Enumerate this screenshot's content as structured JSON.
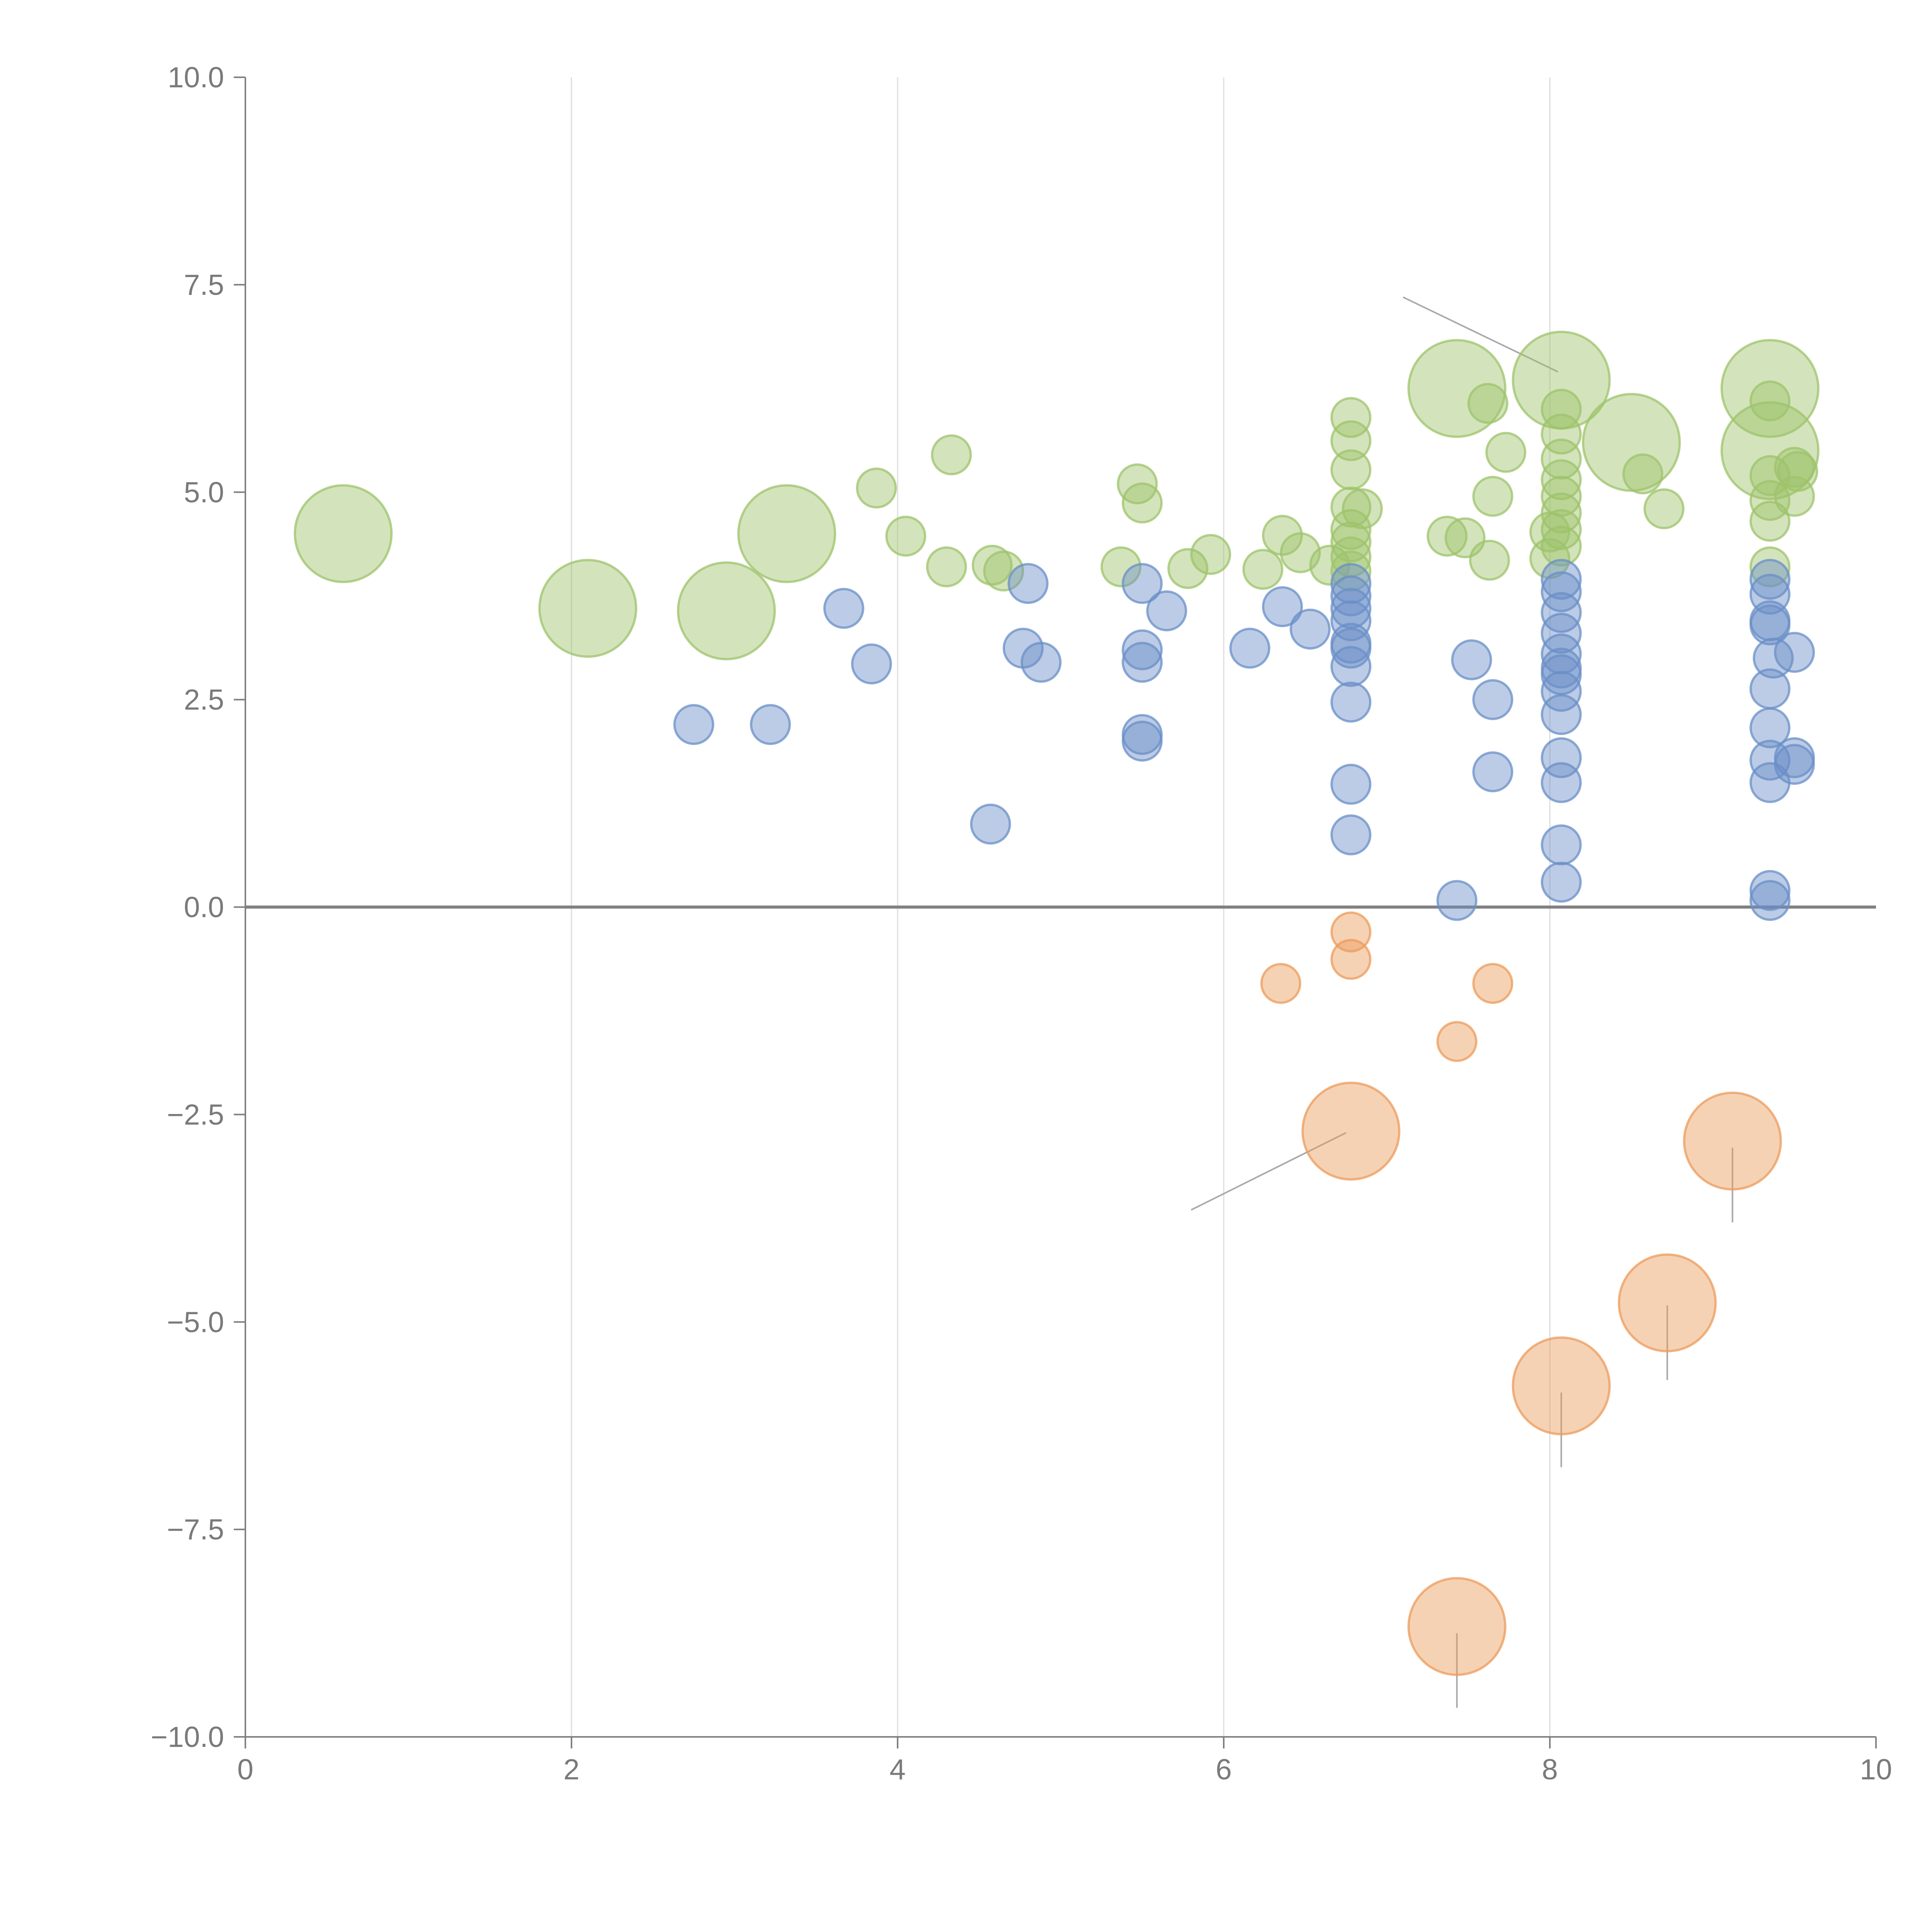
{
  "chart_data": {
    "type": "scatter",
    "title": "",
    "xlabel": "",
    "ylabel": "",
    "xlim": [
      0,
      10
    ],
    "ylim": [
      -10,
      10
    ],
    "x_ticks": [
      0,
      2,
      4,
      6,
      8,
      10
    ],
    "x_tick_labels": [
      "0",
      "2",
      "4",
      "6",
      "8",
      "10"
    ],
    "y_ticks": [
      -10,
      -7.5,
      -5,
      -2.5,
      0,
      2.5,
      5,
      7.5,
      10
    ],
    "y_tick_labels": [
      "−10.0",
      "−7.5",
      "−5.0",
      "−2.5",
      "0.0",
      "2.5",
      "5.0",
      "7.5",
      "10.0"
    ],
    "vertical_grid_at": [
      2,
      4,
      6,
      8
    ],
    "reference_line_y": 0,
    "colors": {
      "green": "#9dc36b",
      "blue": "#6a8fc7",
      "orange": "#ec9b5b",
      "axis": "#808080",
      "grid": "#dcdcdc",
      "leader": "#a8a8a8"
    },
    "size_note": "r = relative bubble size (1 = small, 2.5 = large)",
    "series": [
      {
        "name": "green",
        "color": "#9dc36b",
        "points": [
          {
            "x": 0.6,
            "y": 4.5,
            "r": 2.5
          },
          {
            "x": 2.1,
            "y": 3.6,
            "r": 2.5
          },
          {
            "x": 2.95,
            "y": 3.57,
            "r": 2.5
          },
          {
            "x": 3.32,
            "y": 4.5,
            "r": 2.5
          },
          {
            "x": 3.87,
            "y": 5.05,
            "r": 1
          },
          {
            "x": 4.05,
            "y": 4.47,
            "r": 1
          },
          {
            "x": 4.3,
            "y": 4.1,
            "r": 1
          },
          {
            "x": 4.33,
            "y": 5.45,
            "r": 1
          },
          {
            "x": 4.58,
            "y": 4.12,
            "r": 1
          },
          {
            "x": 4.65,
            "y": 4.05,
            "r": 1
          },
          {
            "x": 5.37,
            "y": 4.1,
            "r": 1
          },
          {
            "x": 5.47,
            "y": 5.1,
            "r": 1
          },
          {
            "x": 5.5,
            "y": 4.87,
            "r": 1
          },
          {
            "x": 5.78,
            "y": 4.08,
            "r": 1
          },
          {
            "x": 5.92,
            "y": 4.25,
            "r": 1
          },
          {
            "x": 6.24,
            "y": 4.07,
            "r": 1
          },
          {
            "x": 6.36,
            "y": 4.48,
            "r": 1
          },
          {
            "x": 6.47,
            "y": 4.27,
            "r": 1
          },
          {
            "x": 6.65,
            "y": 4.12,
            "r": 1
          },
          {
            "x": 6.78,
            "y": 5.9,
            "r": 1
          },
          {
            "x": 6.78,
            "y": 5.62,
            "r": 1
          },
          {
            "x": 6.78,
            "y": 5.27,
            "r": 1
          },
          {
            "x": 6.78,
            "y": 4.82,
            "r": 1
          },
          {
            "x": 6.78,
            "y": 4.55,
            "r": 1
          },
          {
            "x": 6.78,
            "y": 4.4,
            "r": 1
          },
          {
            "x": 6.78,
            "y": 4.22,
            "r": 1
          },
          {
            "x": 6.78,
            "y": 4.05,
            "r": 1
          },
          {
            "x": 6.85,
            "y": 4.8,
            "r": 1
          },
          {
            "x": 7.37,
            "y": 4.47,
            "r": 1
          },
          {
            "x": 7.48,
            "y": 4.45,
            "r": 1
          },
          {
            "x": 7.43,
            "y": 6.25,
            "r": 2.5
          },
          {
            "x": 7.62,
            "y": 6.07,
            "r": 1
          },
          {
            "x": 7.65,
            "y": 4.95,
            "r": 1
          },
          {
            "x": 7.63,
            "y": 4.18,
            "r": 1
          },
          {
            "x": 7.73,
            "y": 5.48,
            "r": 1
          },
          {
            "x": 8.07,
            "y": 6.35,
            "r": 2.5
          },
          {
            "x": 8.07,
            "y": 6.0,
            "r": 1
          },
          {
            "x": 8.07,
            "y": 5.7,
            "r": 1
          },
          {
            "x": 8.07,
            "y": 5.4,
            "r": 1
          },
          {
            "x": 8.07,
            "y": 5.15,
            "r": 1
          },
          {
            "x": 8.07,
            "y": 4.95,
            "r": 1
          },
          {
            "x": 8.07,
            "y": 4.75,
            "r": 1
          },
          {
            "x": 8.07,
            "y": 4.55,
            "r": 1
          },
          {
            "x": 8.07,
            "y": 4.35,
            "r": 1
          },
          {
            "x": 8.0,
            "y": 4.2,
            "r": 1
          },
          {
            "x": 8.0,
            "y": 4.52,
            "r": 1
          },
          {
            "x": 8.5,
            "y": 5.6,
            "r": 2.5
          },
          {
            "x": 8.57,
            "y": 5.22,
            "r": 1
          },
          {
            "x": 8.7,
            "y": 4.8,
            "r": 1
          },
          {
            "x": 9.35,
            "y": 6.25,
            "r": 2.5
          },
          {
            "x": 9.35,
            "y": 5.5,
            "r": 2.5
          },
          {
            "x": 9.35,
            "y": 6.1,
            "r": 1
          },
          {
            "x": 9.35,
            "y": 5.2,
            "r": 1
          },
          {
            "x": 9.35,
            "y": 4.9,
            "r": 1
          },
          {
            "x": 9.35,
            "y": 4.65,
            "r": 1
          },
          {
            "x": 9.35,
            "y": 4.1,
            "r": 1
          },
          {
            "x": 9.5,
            "y": 5.3,
            "r": 1
          },
          {
            "x": 9.5,
            "y": 4.95,
            "r": 1
          },
          {
            "x": 9.52,
            "y": 5.25,
            "r": 1
          }
        ]
      },
      {
        "name": "blue",
        "color": "#6a8fc7",
        "points": [
          {
            "x": 2.75,
            "y": 2.2,
            "r": 1
          },
          {
            "x": 3.22,
            "y": 2.2,
            "r": 1
          },
          {
            "x": 3.67,
            "y": 3.6,
            "r": 1
          },
          {
            "x": 3.84,
            "y": 2.93,
            "r": 1
          },
          {
            "x": 4.57,
            "y": 1.0,
            "r": 1
          },
          {
            "x": 4.77,
            "y": 3.12,
            "r": 1
          },
          {
            "x": 4.8,
            "y": 3.9,
            "r": 1
          },
          {
            "x": 4.88,
            "y": 2.95,
            "r": 1
          },
          {
            "x": 5.5,
            "y": 3.9,
            "r": 1
          },
          {
            "x": 5.5,
            "y": 3.1,
            "r": 1
          },
          {
            "x": 5.5,
            "y": 2.95,
            "r": 1
          },
          {
            "x": 5.5,
            "y": 2.08,
            "r": 1
          },
          {
            "x": 5.5,
            "y": 2.0,
            "r": 1
          },
          {
            "x": 5.65,
            "y": 3.57,
            "r": 1
          },
          {
            "x": 6.16,
            "y": 3.12,
            "r": 1
          },
          {
            "x": 6.36,
            "y": 3.62,
            "r": 1
          },
          {
            "x": 6.53,
            "y": 3.35,
            "r": 1
          },
          {
            "x": 6.78,
            "y": 3.9,
            "r": 1
          },
          {
            "x": 6.78,
            "y": 3.75,
            "r": 1
          },
          {
            "x": 6.78,
            "y": 3.6,
            "r": 1
          },
          {
            "x": 6.78,
            "y": 3.45,
            "r": 1
          },
          {
            "x": 6.78,
            "y": 3.18,
            "r": 1
          },
          {
            "x": 6.78,
            "y": 3.12,
            "r": 1
          },
          {
            "x": 6.78,
            "y": 2.9,
            "r": 1
          },
          {
            "x": 6.78,
            "y": 2.47,
            "r": 1
          },
          {
            "x": 6.78,
            "y": 1.48,
            "r": 1
          },
          {
            "x": 6.78,
            "y": 0.87,
            "r": 1
          },
          {
            "x": 7.43,
            "y": 0.08,
            "r": 1
          },
          {
            "x": 7.52,
            "y": 2.98,
            "r": 1
          },
          {
            "x": 7.65,
            "y": 2.5,
            "r": 1
          },
          {
            "x": 7.65,
            "y": 1.63,
            "r": 1
          },
          {
            "x": 8.07,
            "y": 3.95,
            "r": 1
          },
          {
            "x": 8.07,
            "y": 3.8,
            "r": 1
          },
          {
            "x": 8.07,
            "y": 3.55,
            "r": 1
          },
          {
            "x": 8.07,
            "y": 3.3,
            "r": 1
          },
          {
            "x": 8.07,
            "y": 3.05,
            "r": 1
          },
          {
            "x": 8.07,
            "y": 2.88,
            "r": 1
          },
          {
            "x": 8.07,
            "y": 2.8,
            "r": 1
          },
          {
            "x": 8.07,
            "y": 2.6,
            "r": 1
          },
          {
            "x": 8.07,
            "y": 2.32,
            "r": 1
          },
          {
            "x": 8.07,
            "y": 1.8,
            "r": 1
          },
          {
            "x": 8.07,
            "y": 1.5,
            "r": 1
          },
          {
            "x": 8.07,
            "y": 0.75,
            "r": 1
          },
          {
            "x": 8.07,
            "y": 0.3,
            "r": 1
          },
          {
            "x": 9.35,
            "y": 3.95,
            "r": 1
          },
          {
            "x": 9.35,
            "y": 3.77,
            "r": 1
          },
          {
            "x": 9.35,
            "y": 3.45,
            "r": 1
          },
          {
            "x": 9.35,
            "y": 3.4,
            "r": 1
          },
          {
            "x": 9.37,
            "y": 3.0,
            "r": 1
          },
          {
            "x": 9.35,
            "y": 2.63,
            "r": 1
          },
          {
            "x": 9.35,
            "y": 2.16,
            "r": 1
          },
          {
            "x": 9.35,
            "y": 1.77,
            "r": 1
          },
          {
            "x": 9.35,
            "y": 1.5,
            "r": 1
          },
          {
            "x": 9.35,
            "y": 0.2,
            "r": 1
          },
          {
            "x": 9.35,
            "y": 0.08,
            "r": 1
          },
          {
            "x": 9.5,
            "y": 3.07,
            "r": 1
          },
          {
            "x": 9.5,
            "y": 1.8,
            "r": 1
          },
          {
            "x": 9.5,
            "y": 1.72,
            "r": 1
          }
        ]
      },
      {
        "name": "orange",
        "color": "#ec9b5b",
        "points": [
          {
            "x": 6.35,
            "y": -0.92,
            "r": 1
          },
          {
            "x": 6.78,
            "y": -0.3,
            "r": 1
          },
          {
            "x": 6.78,
            "y": -0.63,
            "r": 1
          },
          {
            "x": 7.43,
            "y": -1.62,
            "r": 1
          },
          {
            "x": 7.65,
            "y": -0.92,
            "r": 1
          },
          {
            "x": 6.78,
            "y": -2.7,
            "r": 2.5
          },
          {
            "x": 7.43,
            "y": -8.67,
            "r": 2.5
          },
          {
            "x": 8.07,
            "y": -5.77,
            "r": 2.5
          },
          {
            "x": 8.72,
            "y": -4.77,
            "r": 2.5
          },
          {
            "x": 9.12,
            "y": -2.82,
            "r": 2.5
          }
        ]
      }
    ],
    "leader_lines": [
      {
        "from": [
          7.1,
          7.35
        ],
        "to": [
          8.05,
          6.45
        ]
      },
      {
        "from": [
          6.75,
          -2.72
        ],
        "to": [
          5.8,
          -3.65
        ]
      },
      {
        "from": [
          9.12,
          -2.9
        ],
        "to": [
          9.12,
          -3.8
        ]
      },
      {
        "from": [
          8.72,
          -4.8
        ],
        "to": [
          8.72,
          -5.7
        ]
      },
      {
        "from": [
          8.07,
          -5.85
        ],
        "to": [
          8.07,
          -6.75
        ]
      },
      {
        "from": [
          7.43,
          -8.75
        ],
        "to": [
          7.43,
          -9.65
        ]
      }
    ]
  }
}
